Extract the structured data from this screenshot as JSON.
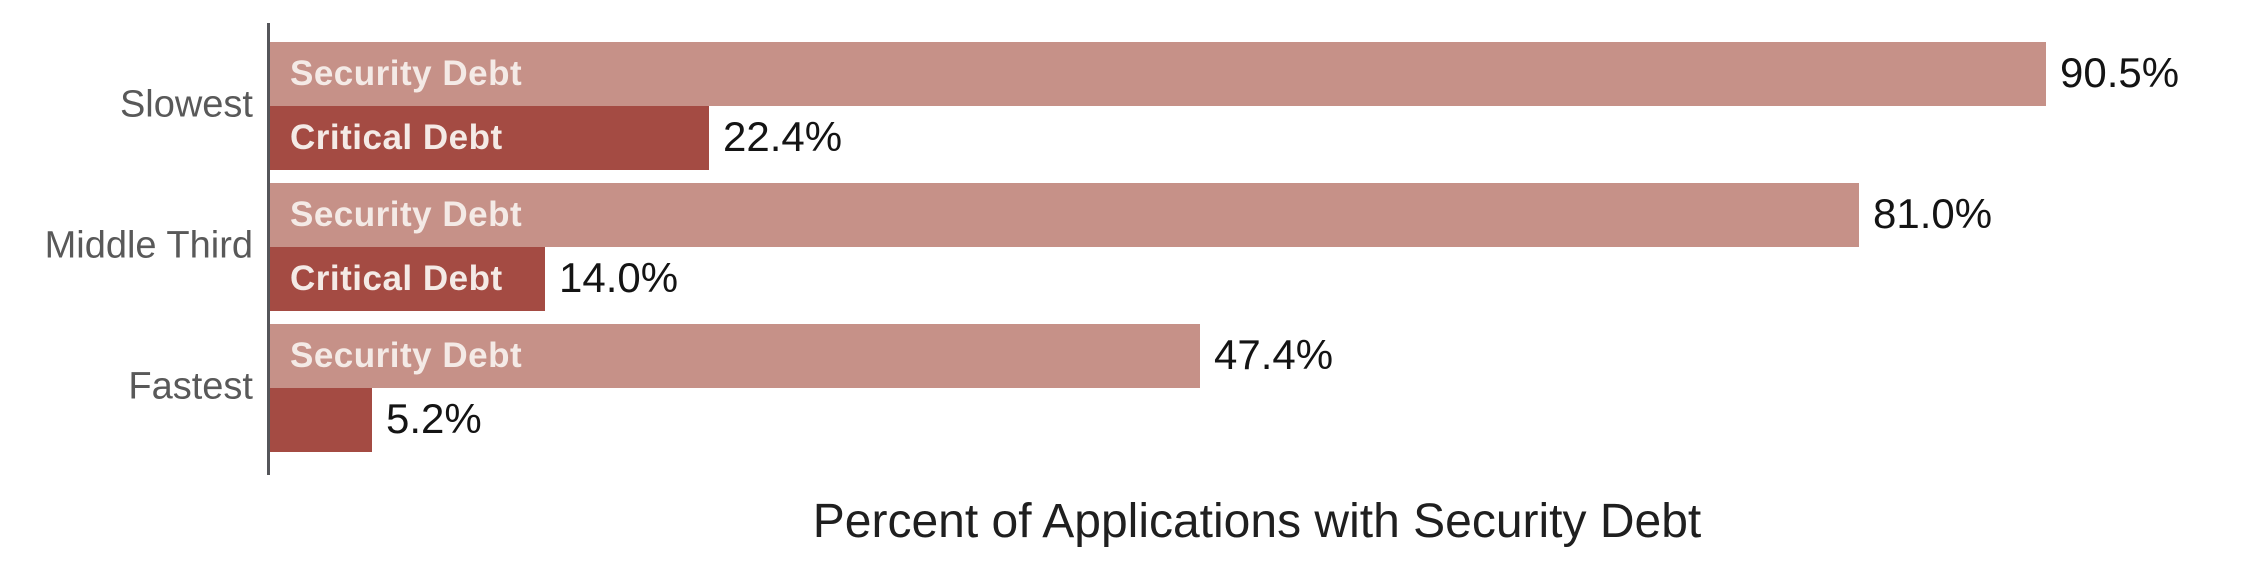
{
  "chart_data": {
    "type": "bar",
    "orientation": "horizontal",
    "title": "Percent of Applications with Security Debt",
    "categories": [
      "Slowest",
      "Middle Third",
      "Fastest"
    ],
    "series": [
      {
        "name": "Security Debt",
        "color": "#c69188",
        "values": [
          90.5,
          81.0,
          47.4
        ],
        "value_labels": [
          "90.5%",
          "81.0%",
          "47.4%"
        ],
        "show_name_in_bar": [
          true,
          true,
          true
        ]
      },
      {
        "name": "Critical Debt",
        "color": "#a44b43",
        "values": [
          22.4,
          14.0,
          5.2
        ],
        "value_labels": [
          "22.4%",
          "14.0%",
          "5.2%"
        ],
        "show_name_in_bar": [
          true,
          true,
          false
        ]
      }
    ],
    "xlim": [
      0,
      100
    ],
    "grid": false,
    "legend_position": "none (series names shown inside bars)",
    "colors": {
      "security_debt_bar": "#c69188",
      "critical_debt_bar": "#a44b43",
      "in_bar_label": "#f4eae6",
      "value_label": "#141414",
      "category_label": "#595959",
      "title": "#1f1f1f",
      "axis_line": "#55565a",
      "background": "#ffffff"
    }
  }
}
